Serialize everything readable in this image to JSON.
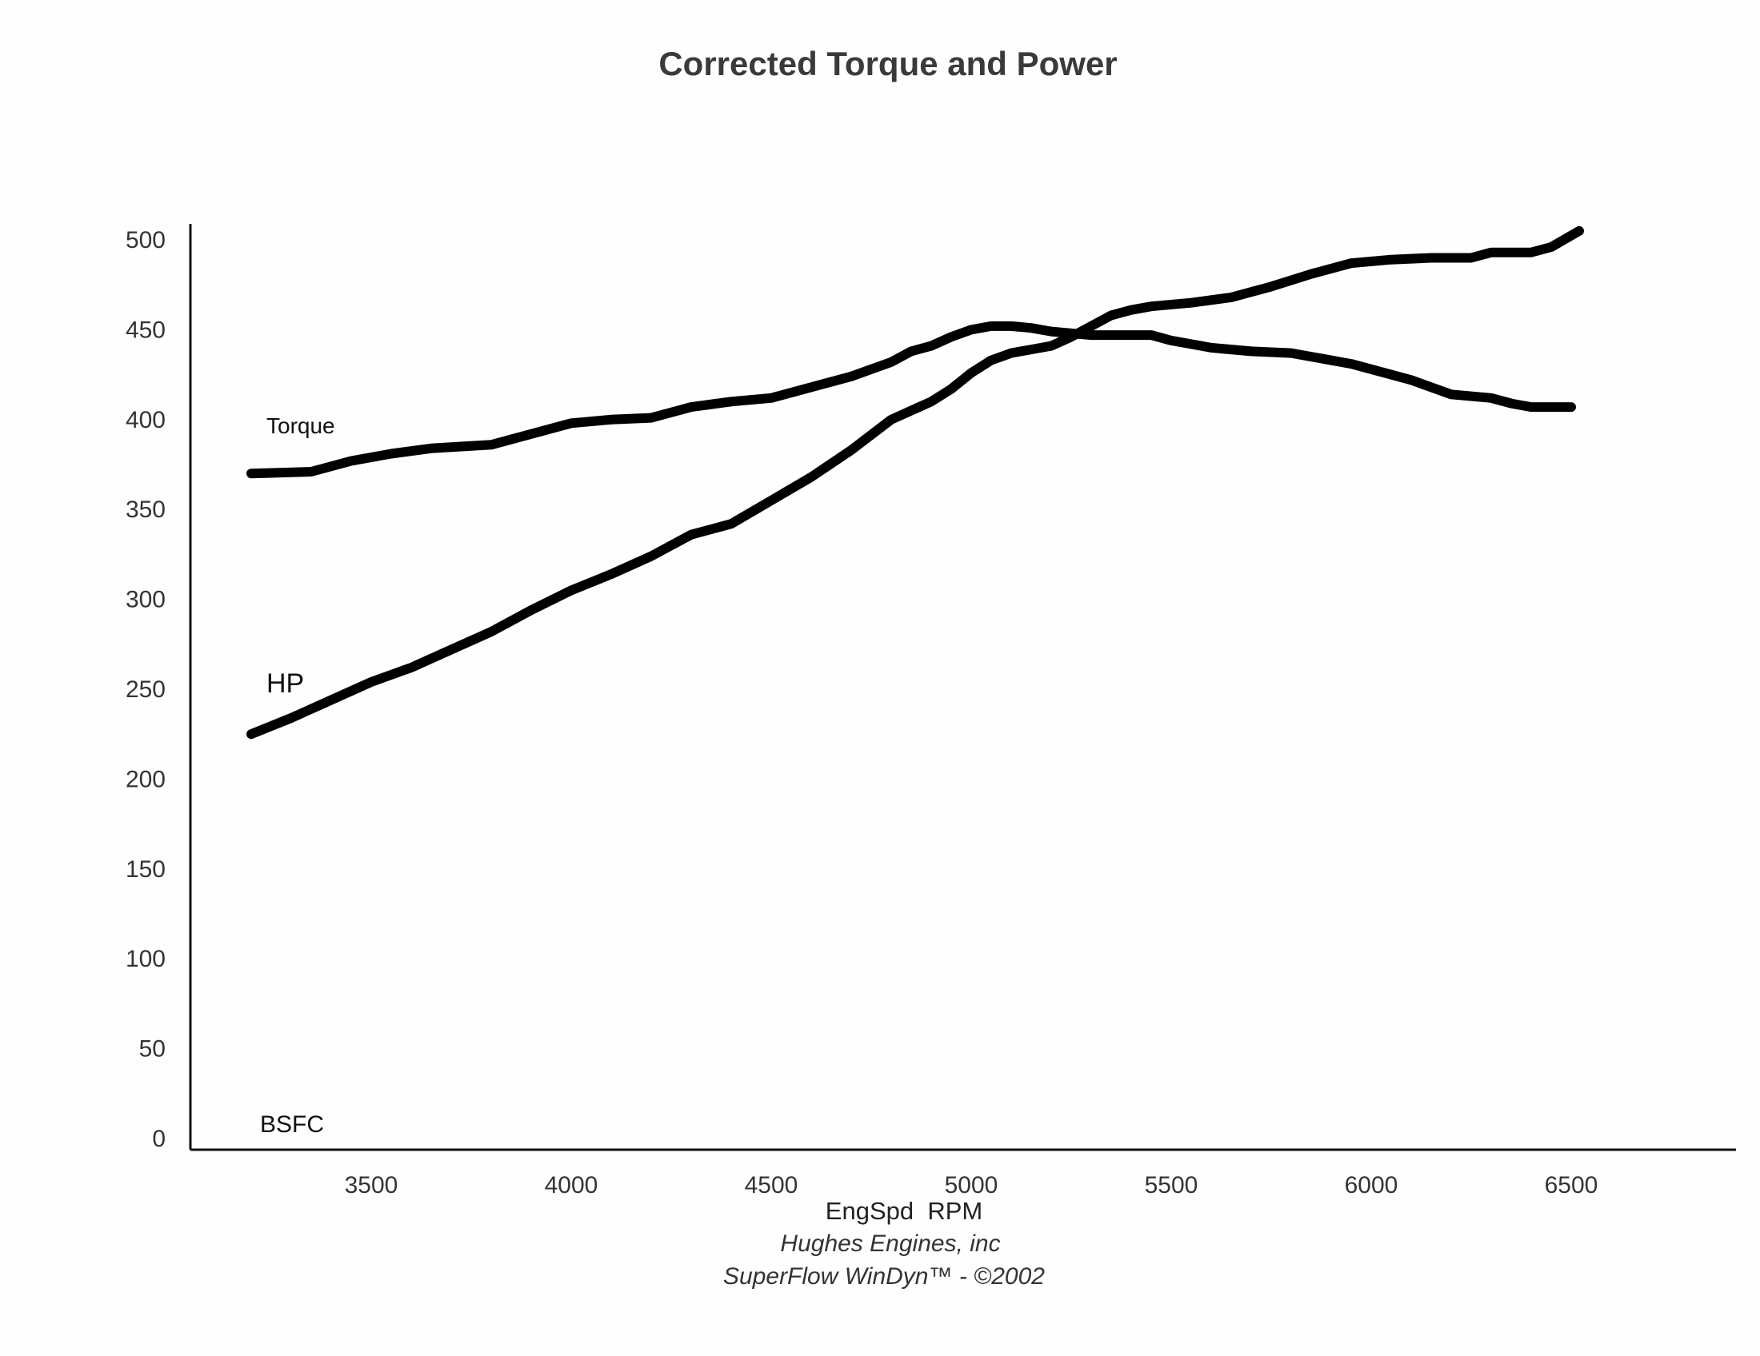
{
  "chart_data": {
    "type": "line",
    "title": "Corrected Torque and Power",
    "xlabel": "EngSpd  RPM",
    "ylabel": "",
    "xlim": [
      3000,
      6900
    ],
    "ylim": [
      0,
      500
    ],
    "grid": false,
    "x_ticks": [
      "3500",
      "4000",
      "4500",
      "5000",
      "5500",
      "6000",
      "6500"
    ],
    "y_ticks": [
      "0",
      "50",
      "100",
      "150",
      "200",
      "250",
      "300",
      "350",
      "400",
      "450",
      "500"
    ],
    "series": [
      {
        "name": "Torque",
        "points": [
          [
            3200,
            370
          ],
          [
            3350,
            371
          ],
          [
            3450,
            377
          ],
          [
            3550,
            381
          ],
          [
            3650,
            384
          ],
          [
            3800,
            386
          ],
          [
            3900,
            392
          ],
          [
            4000,
            398
          ],
          [
            4100,
            400
          ],
          [
            4200,
            401
          ],
          [
            4300,
            407
          ],
          [
            4400,
            410
          ],
          [
            4500,
            412
          ],
          [
            4600,
            418
          ],
          [
            4700,
            424
          ],
          [
            4800,
            432
          ],
          [
            4850,
            438
          ],
          [
            4900,
            441
          ],
          [
            4950,
            446
          ],
          [
            5000,
            450
          ],
          [
            5050,
            452
          ],
          [
            5100,
            452
          ],
          [
            5150,
            451
          ],
          [
            5200,
            449
          ],
          [
            5300,
            447
          ],
          [
            5400,
            447
          ],
          [
            5450,
            447
          ],
          [
            5500,
            444
          ],
          [
            5600,
            440
          ],
          [
            5700,
            438
          ],
          [
            5800,
            437
          ],
          [
            5850,
            435
          ],
          [
            5950,
            431
          ],
          [
            6050,
            425
          ],
          [
            6100,
            422
          ],
          [
            6200,
            414
          ],
          [
            6300,
            412
          ],
          [
            6350,
            409
          ],
          [
            6400,
            407
          ],
          [
            6500,
            407
          ]
        ]
      },
      {
        "name": "HP",
        "points": [
          [
            3200,
            225
          ],
          [
            3300,
            234
          ],
          [
            3400,
            244
          ],
          [
            3500,
            254
          ],
          [
            3600,
            262
          ],
          [
            3700,
            272
          ],
          [
            3800,
            282
          ],
          [
            3900,
            294
          ],
          [
            4000,
            305
          ],
          [
            4100,
            314
          ],
          [
            4200,
            324
          ],
          [
            4300,
            336
          ],
          [
            4400,
            342
          ],
          [
            4500,
            355
          ],
          [
            4600,
            368
          ],
          [
            4700,
            383
          ],
          [
            4800,
            400
          ],
          [
            4900,
            410
          ],
          [
            4950,
            417
          ],
          [
            5000,
            426
          ],
          [
            5050,
            433
          ],
          [
            5100,
            437
          ],
          [
            5150,
            439
          ],
          [
            5200,
            441
          ],
          [
            5250,
            446
          ],
          [
            5300,
            452
          ],
          [
            5350,
            458
          ],
          [
            5400,
            461
          ],
          [
            5450,
            463
          ],
          [
            5550,
            465
          ],
          [
            5650,
            468
          ],
          [
            5750,
            474
          ],
          [
            5850,
            481
          ],
          [
            5950,
            487
          ],
          [
            6050,
            489
          ],
          [
            6150,
            490
          ],
          [
            6250,
            490
          ],
          [
            6300,
            493
          ],
          [
            6400,
            493
          ],
          [
            6450,
            496
          ],
          [
            6520,
            505
          ]
        ]
      }
    ],
    "annotations": [
      "BSFC"
    ]
  },
  "footer": {
    "line1": "Hughes Engines, inc",
    "line2": "SuperFlow WinDyn™ - ©2002"
  }
}
